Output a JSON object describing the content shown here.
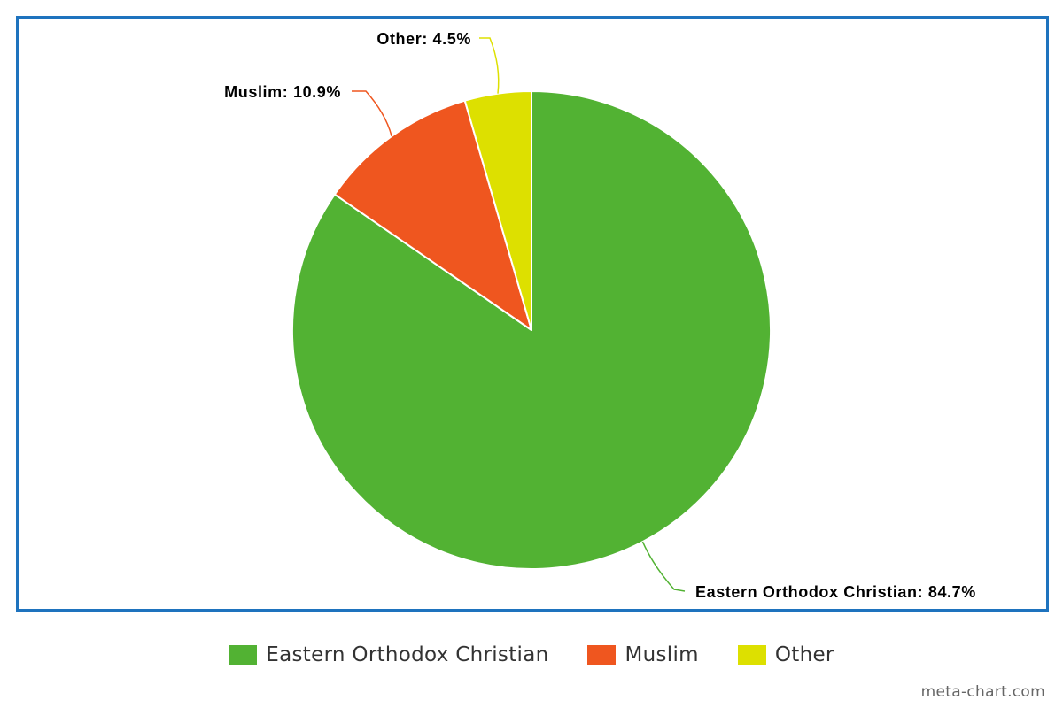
{
  "chart_data": {
    "type": "pie",
    "slices": [
      {
        "label": "Eastern Orthodox Christian",
        "value": 84.7,
        "color": "#52b233",
        "data_label": "Eastern Orthodox Christian: 84.7%"
      },
      {
        "label": "Muslim",
        "value": 10.9,
        "color": "#ef561f",
        "data_label": "Muslim: 10.9%"
      },
      {
        "label": "Other",
        "value": 4.5,
        "color": "#dde000",
        "data_label": "Other: 4.5%"
      }
    ],
    "legend_position": "bottom-center"
  },
  "watermark": "meta-chart.com"
}
